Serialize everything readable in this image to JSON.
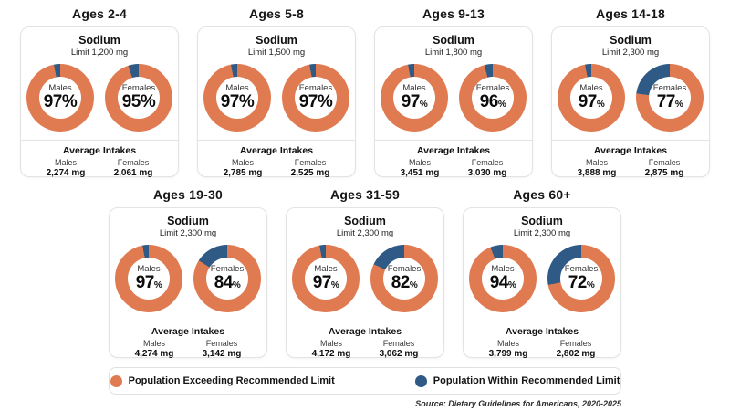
{
  "chart_data": {
    "type": "pie",
    "subtype": "donut-grid",
    "unit": "%",
    "colors": {
      "exceeding": "#E07A50",
      "within": "#2E5A85"
    },
    "legend": [
      {
        "key": "exceeding",
        "label": "Population Exceeding Recommended Limit"
      },
      {
        "key": "within",
        "label": "Population Within Recommended Limit"
      }
    ],
    "source": "Source: Dietary Guidelines for Americans, 2020-2025",
    "groups": [
      {
        "age_group": "Ages 2-4",
        "nutrient": "Sodium",
        "limit_label": "Limit 1,200 mg",
        "limit_mg": 1200,
        "donuts": [
          {
            "label": "Males",
            "exceeding_pct": 97,
            "within_pct": 3,
            "pct_text": "97",
            "pct_symbol": "%",
            "symbol_small": false
          },
          {
            "label": "Females",
            "exceeding_pct": 95,
            "within_pct": 5,
            "pct_text": "95",
            "pct_symbol": "%",
            "symbol_small": false
          }
        ],
        "avg": {
          "header": "Average Intakes",
          "males_label": "Males",
          "males_value": "2,274 mg",
          "females_label": "Females",
          "females_value": "2,061 mg"
        }
      },
      {
        "age_group": "Ages 5-8",
        "nutrient": "Sodium",
        "limit_label": "Limit 1,500 mg",
        "limit_mg": 1500,
        "donuts": [
          {
            "label": "Males",
            "exceeding_pct": 97,
            "within_pct": 3,
            "pct_text": "97",
            "pct_symbol": "%",
            "symbol_small": false
          },
          {
            "label": "Females",
            "exceeding_pct": 97,
            "within_pct": 3,
            "pct_text": "97",
            "pct_symbol": "%",
            "symbol_small": false
          }
        ],
        "avg": {
          "header": "Average Intakes",
          "males_label": "Males",
          "males_value": "2,785 mg",
          "females_label": "Females",
          "females_value": "2,525 mg"
        }
      },
      {
        "age_group": "Ages 9-13",
        "nutrient": "Sodium",
        "limit_label": "Limit 1,800 mg",
        "limit_mg": 1800,
        "donuts": [
          {
            "label": "Males",
            "exceeding_pct": 97,
            "within_pct": 3,
            "pct_text": "97",
            "pct_symbol": "%",
            "symbol_small": true
          },
          {
            "label": "Females",
            "exceeding_pct": 96,
            "within_pct": 4,
            "pct_text": "96",
            "pct_symbol": "%",
            "symbol_small": true
          }
        ],
        "avg": {
          "header": "Average Intakes",
          "males_label": "Males",
          "males_value": "3,451 mg",
          "females_label": "Females",
          "females_value": "3,030 mg"
        }
      },
      {
        "age_group": "Ages 14-18",
        "nutrient": "Sodium",
        "limit_label": "Limit 2,300 mg",
        "limit_mg": 2300,
        "donuts": [
          {
            "label": "Males",
            "exceeding_pct": 97,
            "within_pct": 3,
            "pct_text": "97",
            "pct_symbol": "%",
            "symbol_small": true
          },
          {
            "label": "Females",
            "exceeding_pct": 77,
            "within_pct": 23,
            "pct_text": "77",
            "pct_symbol": "%",
            "symbol_small": true
          }
        ],
        "avg": {
          "header": "Average Intakes",
          "males_label": "Males",
          "males_value": "3,888 mg",
          "females_label": "Females",
          "females_value": "2,875 mg"
        }
      },
      {
        "age_group": "Ages 19-30",
        "nutrient": "Sodium",
        "limit_label": "Limit 2,300 mg",
        "limit_mg": 2300,
        "donuts": [
          {
            "label": "Males",
            "exceeding_pct": 97,
            "within_pct": 3,
            "pct_text": "97",
            "pct_symbol": "%",
            "symbol_small": true
          },
          {
            "label": "Females",
            "exceeding_pct": 84,
            "within_pct": 16,
            "pct_text": "84",
            "pct_symbol": "%",
            "symbol_small": true
          }
        ],
        "avg": {
          "header": "Average Intakes",
          "males_label": "Males",
          "males_value": "4,274 mg",
          "females_label": "Females",
          "females_value": "3,142 mg"
        }
      },
      {
        "age_group": "Ages 31-59",
        "nutrient": "Sodium",
        "limit_label": "Limit 2,300 mg",
        "limit_mg": 2300,
        "donuts": [
          {
            "label": "Males",
            "exceeding_pct": 97,
            "within_pct": 3,
            "pct_text": "97",
            "pct_symbol": "%",
            "symbol_small": true
          },
          {
            "label": "Females",
            "exceeding_pct": 82,
            "within_pct": 18,
            "pct_text": "82",
            "pct_symbol": "%",
            "symbol_small": true
          }
        ],
        "avg": {
          "header": "Average Intakes",
          "males_label": "Males",
          "males_value": "4,172 mg",
          "females_label": "Females",
          "females_value": "3,062 mg"
        }
      },
      {
        "age_group": "Ages 60+",
        "nutrient": "Sodium",
        "limit_label": "Limit 2,300 mg",
        "limit_mg": 2300,
        "donuts": [
          {
            "label": "Males",
            "exceeding_pct": 94,
            "within_pct": 6,
            "pct_text": "94",
            "pct_symbol": "%",
            "symbol_small": true
          },
          {
            "label": "Females",
            "exceeding_pct": 72,
            "within_pct": 28,
            "pct_text": "72",
            "pct_symbol": "%",
            "symbol_small": true
          }
        ],
        "avg": {
          "header": "Average Intakes",
          "males_label": "Males",
          "males_value": "3,799 mg",
          "females_label": "Females",
          "females_value": "2,802 mg"
        }
      }
    ]
  }
}
